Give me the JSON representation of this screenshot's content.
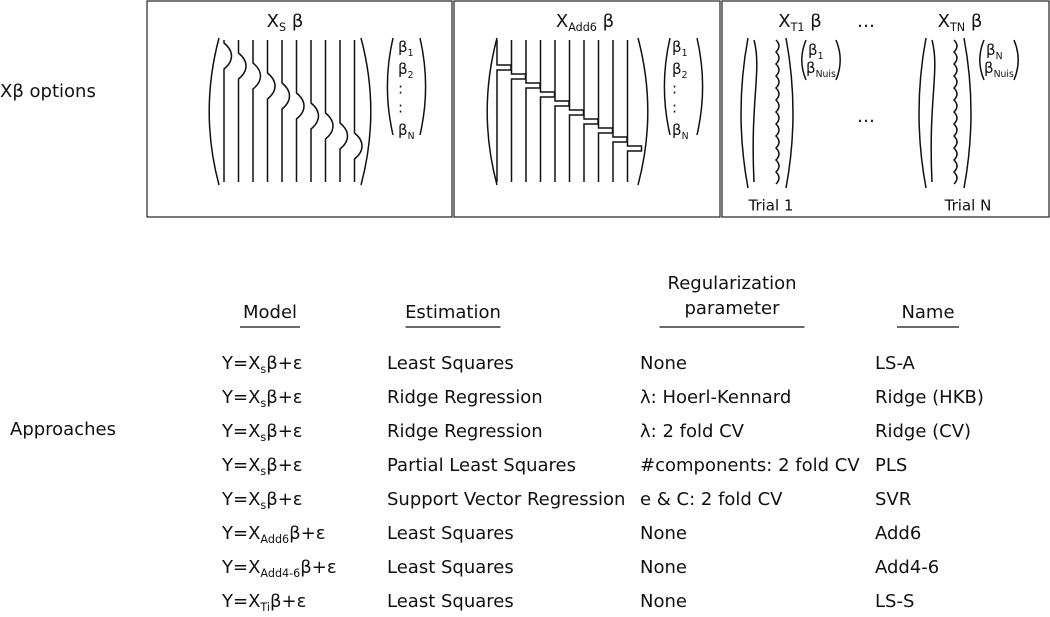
{
  "row_labels": {
    "options": "Xβ options",
    "approaches": "Approaches"
  },
  "panels": [
    {
      "title": {
        "text": "X",
        "sub": "S",
        "after": " β"
      },
      "vector": [
        {
          "text": "β",
          "sub": "1"
        },
        {
          "text": "β",
          "sub": "2"
        },
        ":",
        ":",
        {
          "text": "β",
          "sub": "N"
        }
      ]
    },
    {
      "title": {
        "text": "X",
        "sub": "Add6",
        "after": " β"
      },
      "vector": [
        {
          "text": "β",
          "sub": "1"
        },
        {
          "text": "β",
          "sub": "2"
        },
        ":",
        ":",
        {
          "text": "β",
          "sub": "N"
        }
      ]
    },
    {
      "titles": [
        {
          "text": "X",
          "sub": "T1",
          "after": " β"
        },
        "…",
        {
          "text": "X",
          "sub": "TN",
          "after": " β"
        }
      ],
      "trials": [
        {
          "vector": [
            {
              "text": "β",
              "sub": "1"
            },
            {
              "text": "β",
              "sub": "Nuis"
            }
          ],
          "label": "Trial 1"
        },
        {
          "vector": [
            {
              "text": "β",
              "sub": "N"
            },
            {
              "text": "β",
              "sub": "Nuis"
            }
          ],
          "label": "Trial N"
        }
      ],
      "ellipsis": "…"
    }
  ],
  "table": {
    "headers": [
      "Model",
      "Estimation",
      [
        "Regularization",
        "parameter"
      ],
      "Name"
    ],
    "rows": [
      [
        {
          "text": "Y=X",
          "sub": "s",
          "after": "β+ε"
        },
        "Least Squares",
        "None",
        "LS-A"
      ],
      [
        {
          "text": "Y=X",
          "sub": "s",
          "after": "β+ε"
        },
        "Ridge Regression",
        "λ: Hoerl-Kennard",
        "Ridge (HKB)"
      ],
      [
        {
          "text": "Y=X",
          "sub": "s",
          "after": "β+ε"
        },
        "Ridge Regression",
        "λ: 2 fold CV",
        "Ridge (CV)"
      ],
      [
        {
          "text": "Y=X",
          "sub": "s",
          "after": "β+ε"
        },
        "Partial Least Squares",
        "#components: 2 fold CV",
        "PLS"
      ],
      [
        {
          "text": "Y=X",
          "sub": "s",
          "after": "β+ε"
        },
        "Support Vector Regression",
        "e & C: 2 fold CV",
        "SVR"
      ],
      [
        {
          "text": "Y=X",
          "sub": "Add6",
          "after": "β+ε"
        },
        "Least Squares",
        "None",
        "Add6"
      ],
      [
        {
          "text": "Y=X",
          "sub": "Add4-6",
          "after": "β+ε"
        },
        "Least Squares",
        "None",
        "Add4-6"
      ],
      [
        {
          "text": "Y=X",
          "sub": "Ti",
          "after": "β+ε"
        },
        "Least Squares",
        "None",
        "LS-S"
      ]
    ]
  }
}
